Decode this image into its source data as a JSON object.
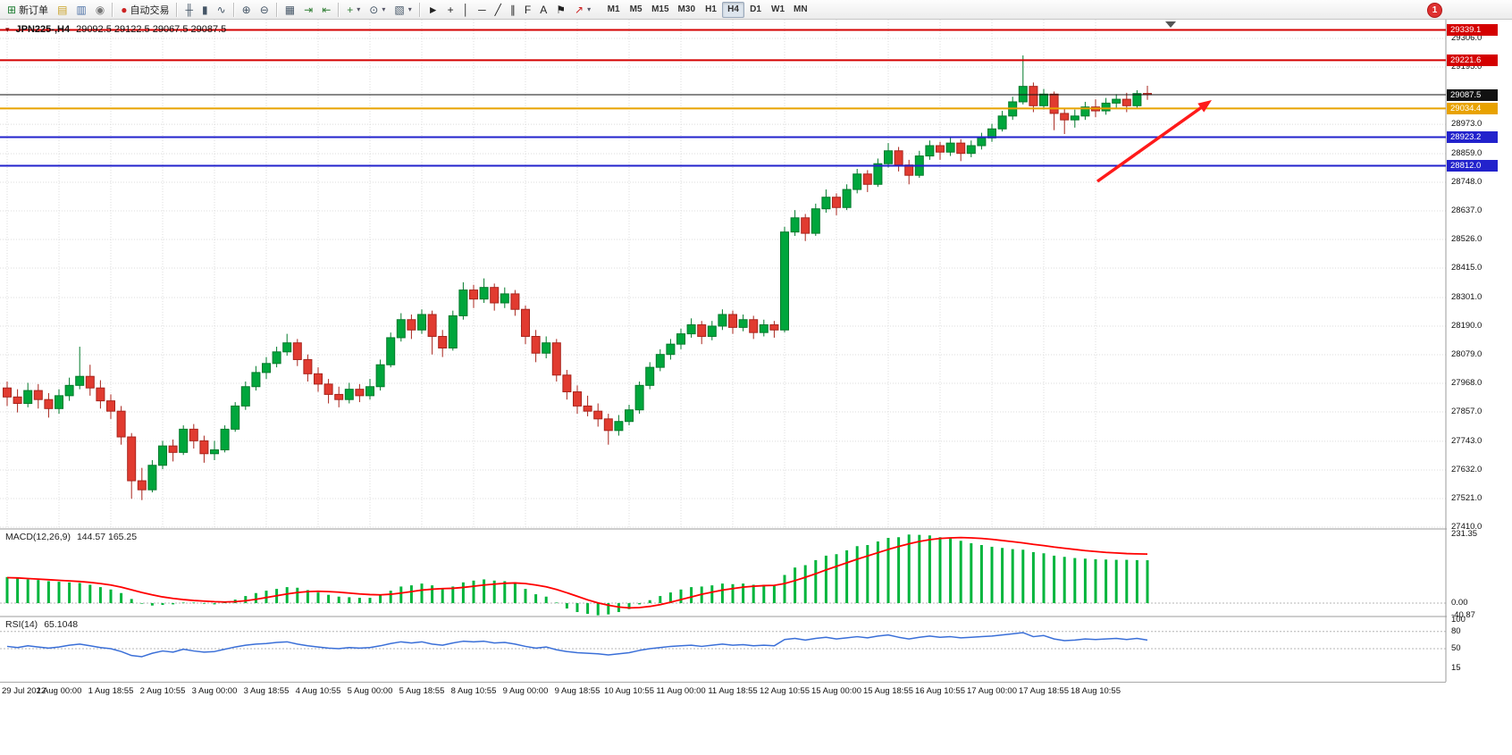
{
  "toolbar": {
    "buttons": [
      {
        "name": "new-order",
        "icon": "new-order-icon",
        "glyph": "⊞",
        "color": "#1e7d32",
        "label": "新订单"
      },
      {
        "name": "market-watch",
        "icon": "market-watch-icon",
        "glyph": "▤",
        "color": "#c9a227"
      },
      {
        "name": "data-window",
        "icon": "data-window-icon",
        "glyph": "▥",
        "color": "#4a6fa5"
      },
      {
        "name": "navigator",
        "icon": "navigator-icon",
        "glyph": "◉",
        "color": "#777777"
      },
      {
        "name": "autotrading",
        "icon": "autotrading-icon",
        "glyph": "●",
        "color": "#cc2222",
        "label": "自动交易",
        "sep_before": true
      },
      {
        "name": "bar-chart",
        "icon": "bar-chart-icon",
        "glyph": "╫",
        "color": "#445566",
        "sep_before": true
      },
      {
        "name": "candlestick-chart",
        "icon": "candlestick-chart-icon",
        "glyph": "▮",
        "color": "#445566"
      },
      {
        "name": "line-chart",
        "icon": "line-chart-icon",
        "glyph": "∿",
        "color": "#445566"
      },
      {
        "name": "zoom-in",
        "icon": "zoom-in-icon",
        "glyph": "⊕",
        "color": "#445566",
        "sep_before": true
      },
      {
        "name": "zoom-out",
        "icon": "zoom-out-icon",
        "glyph": "⊖",
        "color": "#445566"
      },
      {
        "name": "tile-windows",
        "icon": "tile-windows-icon",
        "glyph": "▦",
        "color": "#445566",
        "sep_before": true
      },
      {
        "name": "auto-scroll",
        "icon": "auto-scroll-icon",
        "glyph": "⇥",
        "color": "#2e7d32"
      },
      {
        "name": "chart-shift",
        "icon": "chart-shift-icon",
        "glyph": "⇤",
        "color": "#2e7d32"
      },
      {
        "name": "indicators",
        "icon": "indicators-icon",
        "glyph": "+",
        "color": "#2e7d32",
        "dropdown": true,
        "sep_before": true
      },
      {
        "name": "periods",
        "icon": "clock-icon",
        "glyph": "⊙",
        "color": "#445566",
        "dropdown": true
      },
      {
        "name": "templates",
        "icon": "templates-icon",
        "glyph": "▧",
        "color": "#445566",
        "dropdown": true
      },
      {
        "name": "cursor",
        "icon": "cursor-icon",
        "glyph": "►",
        "color": "#222222",
        "sep_before": true
      },
      {
        "name": "crosshair",
        "icon": "crosshair-icon",
        "glyph": "+",
        "color": "#222222"
      },
      {
        "name": "vertical-line",
        "icon": "vertical-line-icon",
        "glyph": "│",
        "color": "#222222"
      },
      {
        "name": "horizontal-line",
        "icon": "horizontal-line-icon",
        "glyph": "─",
        "color": "#222222"
      },
      {
        "name": "trendline",
        "icon": "trendline-icon",
        "glyph": "╱",
        "color": "#222222"
      },
      {
        "name": "channel",
        "icon": "channel-icon",
        "glyph": "∥",
        "color": "#222222"
      },
      {
        "name": "fibonacci",
        "icon": "fibonacci-icon",
        "glyph": "F",
        "color": "#222222"
      },
      {
        "name": "text",
        "icon": "text-icon",
        "glyph": "A",
        "color": "#222222"
      },
      {
        "name": "text-label",
        "icon": "text-label-icon",
        "glyph": "⚑",
        "color": "#222222"
      },
      {
        "name": "arrows",
        "icon": "arrows-icon",
        "glyph": "↗",
        "color": "#cc2222",
        "dropdown": true
      }
    ],
    "timeframes": [
      "M1",
      "M5",
      "M15",
      "M30",
      "H1",
      "H4",
      "D1",
      "W1",
      "MN"
    ],
    "active_timeframe": "H4",
    "notification_badge": "1"
  },
  "chart": {
    "title_symbol": "JPN225-,H4",
    "title_ohlc": "29092.5 29122.5 29067.5 29087.5"
  },
  "chart_data": {
    "type": "candlestick",
    "symbol": "JPN225-",
    "period": "H4",
    "ohlc_current": {
      "open": 29092.5,
      "high": 29122.5,
      "low": 29067.5,
      "close": 29087.5
    },
    "style": {
      "bull_color": "#00a63c",
      "bull_border": "#027a2b",
      "bear_color": "#e13b30",
      "bear_border": "#a8241c",
      "macd_hist_color": "#00b53c",
      "macd_signal_color": "#ff0000",
      "rsi_color": "#3a6fd8",
      "grid_color": "#dcdcdc"
    },
    "price_axis_labels": [
      "29306.0",
      "29195.0",
      "28973.0",
      "28859.0",
      "28748.0",
      "28637.0",
      "28526.0",
      "28415.0",
      "28301.0",
      "28190.0",
      "28079.0",
      "27968.0",
      "27857.0",
      "27743.0",
      "27632.0",
      "27521.0",
      "27410.0"
    ],
    "horizontal_lines": [
      {
        "name": "resistance-line-upper",
        "price": 29339.1,
        "color": "#d40000",
        "width": 2
      },
      {
        "name": "resistance-line-lower",
        "price": 29221.6,
        "color": "#d40000",
        "width": 2
      },
      {
        "name": "bid-price-line",
        "price": 29087.5,
        "color": "#111111",
        "width": 1
      },
      {
        "name": "support-line-orange",
        "price": 29034.4,
        "color": "#e8a200",
        "width": 2
      },
      {
        "name": "support-line-blue-upper",
        "price": 28923.2,
        "color": "#2222cc",
        "width": 2
      },
      {
        "name": "support-line-blue-lower",
        "price": 28812.0,
        "color": "#2222cc",
        "width": 2
      }
    ],
    "time_labels": [
      "29 Jul 2022",
      "1 Aug 00:00",
      "1 Aug 18:55",
      "2 Aug 10:55",
      "3 Aug 00:00",
      "3 Aug 18:55",
      "4 Aug 10:55",
      "5 Aug 00:00",
      "5 Aug 18:55",
      "8 Aug 10:55",
      "9 Aug 00:00",
      "9 Aug 18:55",
      "10 Aug 10:55",
      "11 Aug 00:00",
      "11 Aug 18:55",
      "12 Aug 10:55",
      "15 Aug 00:00",
      "15 Aug 18:55",
      "16 Aug 10:55",
      "17 Aug 00:00",
      "17 Aug 18:55",
      "18 Aug 10:55"
    ],
    "candles_ohlc": [
      [
        27950,
        27975,
        27880,
        27915
      ],
      [
        27915,
        27945,
        27855,
        27890
      ],
      [
        27890,
        27970,
        27875,
        27940
      ],
      [
        27940,
        27965,
        27870,
        27905
      ],
      [
        27905,
        27930,
        27835,
        27870
      ],
      [
        27870,
        27945,
        27850,
        27920
      ],
      [
        27920,
        27990,
        27900,
        27960
      ],
      [
        27960,
        28110,
        27945,
        27995
      ],
      [
        27995,
        28040,
        27920,
        27950
      ],
      [
        27950,
        27980,
        27870,
        27900
      ],
      [
        27900,
        27925,
        27830,
        27860
      ],
      [
        27860,
        27880,
        27730,
        27760
      ],
      [
        27760,
        27775,
        27520,
        27590
      ],
      [
        27590,
        27640,
        27515,
        27555
      ],
      [
        27555,
        27670,
        27545,
        27650
      ],
      [
        27650,
        27745,
        27635,
        27725
      ],
      [
        27725,
        27750,
        27665,
        27700
      ],
      [
        27700,
        27805,
        27690,
        27790
      ],
      [
        27790,
        27810,
        27715,
        27745
      ],
      [
        27745,
        27765,
        27660,
        27695
      ],
      [
        27695,
        27745,
        27670,
        27710
      ],
      [
        27710,
        27805,
        27700,
        27790
      ],
      [
        27790,
        27895,
        27780,
        27880
      ],
      [
        27880,
        27975,
        27865,
        27955
      ],
      [
        27955,
        28035,
        27940,
        28010
      ],
      [
        28010,
        28070,
        27985,
        28045
      ],
      [
        28045,
        28110,
        28030,
        28090
      ],
      [
        28090,
        28160,
        28075,
        28125
      ],
      [
        28125,
        28140,
        28035,
        28060
      ],
      [
        28060,
        28080,
        27975,
        28005
      ],
      [
        28005,
        28030,
        27935,
        27965
      ],
      [
        27965,
        27985,
        27890,
        27925
      ],
      [
        27925,
        27955,
        27875,
        27905
      ],
      [
        27905,
        27970,
        27890,
        27945
      ],
      [
        27945,
        27965,
        27895,
        27920
      ],
      [
        27920,
        27985,
        27905,
        27955
      ],
      [
        27955,
        28060,
        27940,
        28040
      ],
      [
        28040,
        28165,
        28030,
        28145
      ],
      [
        28145,
        28240,
        28130,
        28215
      ],
      [
        28215,
        28235,
        28140,
        28175
      ],
      [
        28175,
        28255,
        28160,
        28235
      ],
      [
        28235,
        28250,
        28080,
        28150
      ],
      [
        28150,
        28175,
        28070,
        28105
      ],
      [
        28105,
        28250,
        28095,
        28230
      ],
      [
        28230,
        28360,
        28215,
        28330
      ],
      [
        28330,
        28350,
        28260,
        28295
      ],
      [
        28295,
        28375,
        28280,
        28340
      ],
      [
        28340,
        28355,
        28250,
        28280
      ],
      [
        28280,
        28340,
        28260,
        28315
      ],
      [
        28315,
        28330,
        28230,
        28255
      ],
      [
        28255,
        28270,
        28120,
        28150
      ],
      [
        28150,
        28175,
        28050,
        28085
      ],
      [
        28085,
        28150,
        28065,
        28125
      ],
      [
        28125,
        28140,
        27975,
        28000
      ],
      [
        28000,
        28020,
        27905,
        27935
      ],
      [
        27935,
        27960,
        27850,
        27880
      ],
      [
        27880,
        27920,
        27840,
        27860
      ],
      [
        27860,
        27890,
        27800,
        27830
      ],
      [
        27830,
        27850,
        27730,
        27785
      ],
      [
        27785,
        27845,
        27765,
        27820
      ],
      [
        27820,
        27885,
        27805,
        27865
      ],
      [
        27865,
        27975,
        27850,
        27960
      ],
      [
        27960,
        28050,
        27945,
        28030
      ],
      [
        28030,
        28100,
        28015,
        28080
      ],
      [
        28080,
        28140,
        28060,
        28120
      ],
      [
        28120,
        28180,
        28100,
        28160
      ],
      [
        28160,
        28220,
        28145,
        28195
      ],
      [
        28195,
        28210,
        28120,
        28150
      ],
      [
        28150,
        28210,
        28135,
        28190
      ],
      [
        28190,
        28255,
        28175,
        28235
      ],
      [
        28235,
        28250,
        28160,
        28185
      ],
      [
        28185,
        28235,
        28170,
        28215
      ],
      [
        28215,
        28230,
        28140,
        28165
      ],
      [
        28165,
        28215,
        28150,
        28195
      ],
      [
        28195,
        28210,
        28145,
        28175
      ],
      [
        28175,
        28575,
        28165,
        28555
      ],
      [
        28555,
        28640,
        28540,
        28610
      ],
      [
        28610,
        28625,
        28520,
        28550
      ],
      [
        28550,
        28665,
        28540,
        28645
      ],
      [
        28645,
        28720,
        28630,
        28690
      ],
      [
        28690,
        28705,
        28620,
        28650
      ],
      [
        28650,
        28740,
        28640,
        28720
      ],
      [
        28720,
        28800,
        28705,
        28780
      ],
      [
        28780,
        28795,
        28710,
        28740
      ],
      [
        28740,
        28840,
        28730,
        28820
      ],
      [
        28820,
        28900,
        28805,
        28870
      ],
      [
        28870,
        28885,
        28790,
        28815
      ],
      [
        28815,
        28835,
        28740,
        28775
      ],
      [
        28775,
        28870,
        28765,
        28850
      ],
      [
        28850,
        28910,
        28835,
        28890
      ],
      [
        28890,
        28905,
        28835,
        28865
      ],
      [
        28865,
        28920,
        28850,
        28900
      ],
      [
        28900,
        28915,
        28830,
        28860
      ],
      [
        28860,
        28910,
        28845,
        28890
      ],
      [
        28890,
        28940,
        28875,
        28920
      ],
      [
        28920,
        28975,
        28905,
        28955
      ],
      [
        28955,
        29025,
        28945,
        29005
      ],
      [
        29005,
        29080,
        28990,
        29060
      ],
      [
        29060,
        29240,
        29050,
        29120
      ],
      [
        29120,
        29135,
        29020,
        29045
      ],
      [
        29045,
        29110,
        29030,
        29090
      ],
      [
        29090,
        29100,
        28950,
        29015
      ],
      [
        29015,
        29035,
        28935,
        28990
      ],
      [
        28990,
        29030,
        28960,
        29005
      ],
      [
        29005,
        29060,
        28990,
        29040
      ],
      [
        29040,
        29070,
        29000,
        29025
      ],
      [
        29025,
        29075,
        29010,
        29055
      ],
      [
        29055,
        29090,
        29035,
        29070
      ],
      [
        29070,
        29095,
        29020,
        29045
      ],
      [
        29045,
        29105,
        29035,
        29092
      ],
      [
        29092.5,
        29122.5,
        29067.5,
        29087.5
      ]
    ],
    "macd": {
      "name": "MACD(12,26,9)",
      "values_text": "144.57 165.25",
      "axis_labels": [
        "231.35",
        "0.00",
        "-40.87"
      ],
      "hist": [
        88,
        84,
        80,
        78,
        74,
        72,
        70,
        68,
        62,
        54,
        46,
        34,
        14,
        -2,
        -8,
        -6,
        -4,
        2,
        2,
        -2,
        -4,
        2,
        12,
        24,
        34,
        42,
        48,
        54,
        52,
        44,
        36,
        28,
        22,
        20,
        18,
        18,
        26,
        42,
        56,
        60,
        66,
        60,
        50,
        56,
        70,
        76,
        80,
        76,
        74,
        66,
        48,
        30,
        22,
        2,
        -18,
        -30,
        -36,
        -40.87,
        -38,
        -30,
        -20,
        -4,
        10,
        24,
        36,
        46,
        54,
        56,
        60,
        66,
        64,
        66,
        62,
        62,
        58,
        95,
        120,
        128,
        145,
        160,
        165,
        178,
        192,
        196,
        208,
        220,
        222,
        231.35,
        230,
        228,
        222,
        218,
        210,
        202,
        196,
        190,
        186,
        182,
        180,
        172,
        168,
        160,
        156,
        152,
        150,
        148,
        147,
        146,
        146,
        145,
        144.57
      ],
      "signal": [
        86,
        85,
        83,
        81,
        79,
        77,
        75,
        73,
        70,
        66,
        61,
        54,
        45,
        36,
        28,
        21,
        16,
        12,
        9,
        7,
        5,
        4,
        5,
        8,
        13,
        19,
        25,
        31,
        36,
        39,
        40,
        39,
        37,
        34,
        31,
        29,
        28,
        30,
        34,
        39,
        44,
        47,
        49,
        50,
        53,
        57,
        61,
        64,
        67,
        68,
        66,
        61,
        55,
        46,
        35,
        23,
        11,
        1,
        -7,
        -13,
        -16,
        -15,
        -11,
        -5,
        3,
        12,
        21,
        30,
        37,
        44,
        49,
        54,
        57,
        59,
        60,
        66,
        76,
        87,
        99,
        112,
        124,
        136,
        148,
        159,
        170,
        181,
        191,
        200,
        208,
        214,
        218,
        220,
        221,
        220,
        218,
        215,
        211,
        207,
        203,
        198,
        194,
        189,
        185,
        181,
        177,
        174,
        171,
        169,
        167,
        166,
        165.25
      ]
    },
    "rsi": {
      "name": "RSI(14)",
      "value_text": "65.1048",
      "axis_labels": [
        "100",
        "80",
        "50",
        "15"
      ],
      "levels": [
        80,
        50
      ],
      "values": [
        54,
        52,
        55,
        53,
        51,
        53,
        56,
        58,
        55,
        52,
        50,
        45,
        38,
        36,
        42,
        46,
        44,
        49,
        46,
        44,
        45,
        49,
        53,
        56,
        58,
        59,
        61,
        62,
        58,
        55,
        53,
        51,
        50,
        52,
        51,
        52,
        55,
        59,
        62,
        60,
        62,
        58,
        56,
        60,
        63,
        62,
        63,
        60,
        61,
        58,
        54,
        51,
        53,
        48,
        45,
        43,
        42,
        41,
        39,
        41,
        43,
        47,
        50,
        52,
        54,
        55,
        56,
        54,
        56,
        58,
        56,
        57,
        55,
        56,
        55,
        66,
        68,
        65,
        68,
        70,
        67,
        69,
        71,
        69,
        72,
        74,
        70,
        67,
        70,
        72,
        70,
        71,
        69,
        70,
        71,
        72,
        74,
        76,
        78,
        71,
        73,
        67,
        64,
        65,
        67,
        66,
        67,
        68,
        66,
        68,
        65.1
      ]
    },
    "annotation_arrow": {
      "from": [
        1228,
        203
      ],
      "to": [
        1356,
        112
      ],
      "color": "#ff1a1a"
    }
  }
}
